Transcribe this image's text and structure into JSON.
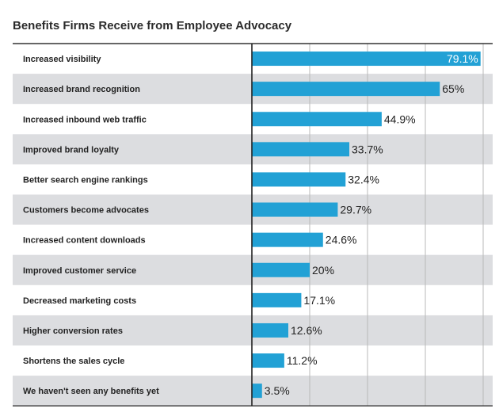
{
  "chart_data": {
    "type": "bar",
    "orientation": "horizontal",
    "title": "Benefits Firms Receive from Employee Advocacy",
    "categories": [
      "Increased visibility",
      "Increased brand recognition",
      "Increased inbound web traffic",
      "Improved brand loyalty",
      "Better search engine rankings",
      "Customers become advocates",
      "Increased content downloads",
      "Improved customer service",
      "Decreased marketing costs",
      "Higher conversion rates",
      "Shortens the sales cycle",
      "We haven't seen any benefits yet"
    ],
    "values": [
      79.1,
      65,
      44.9,
      33.7,
      32.4,
      29.7,
      24.6,
      20,
      17.1,
      12.6,
      11.2,
      3.5
    ],
    "value_labels": [
      "79.1%",
      "65%",
      "44.9%",
      "33.7%",
      "32.4%",
      "29.7%",
      "24.6%",
      "20%",
      "17.1%",
      "12.6%",
      "11.2%",
      "3.5%"
    ],
    "xlim": [
      0,
      80
    ],
    "grid": true,
    "bar_color": "#22a1d5",
    "stripe_color": "#dcdde0"
  }
}
